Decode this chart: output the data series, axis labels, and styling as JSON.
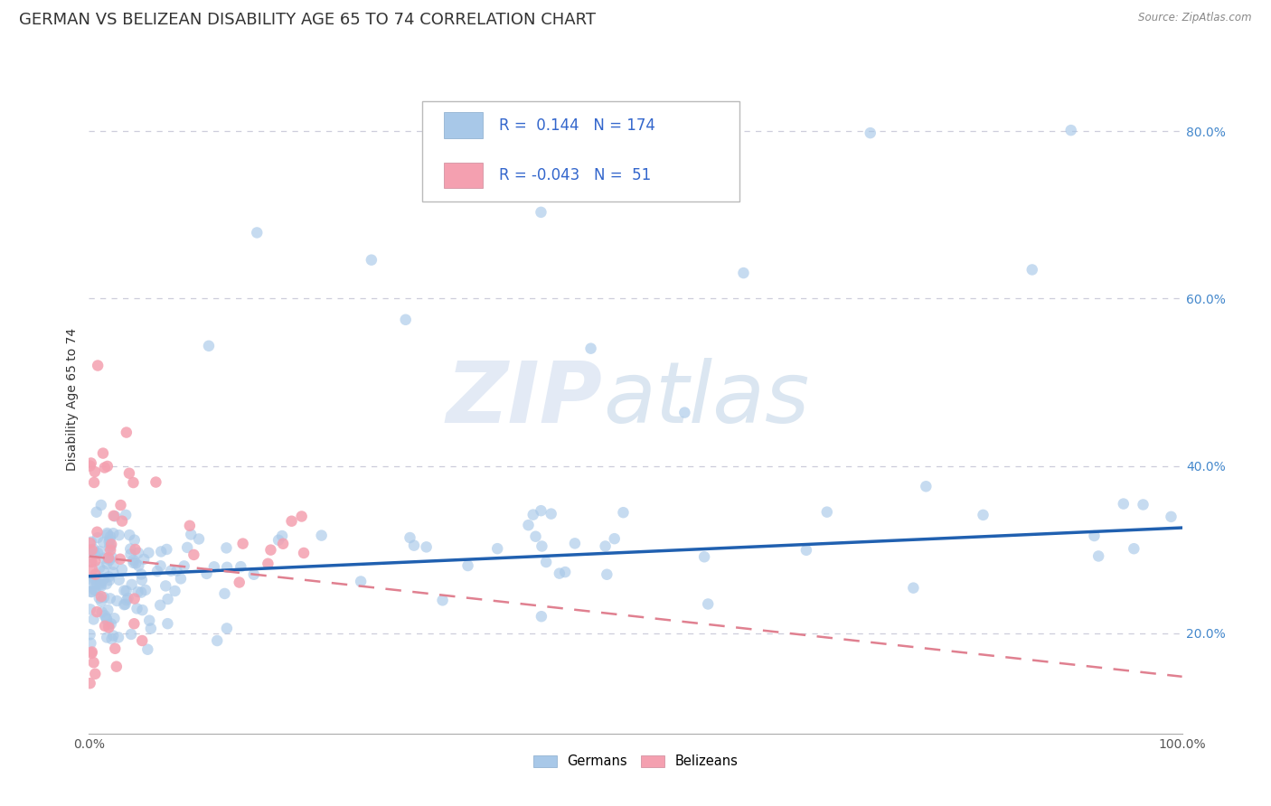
{
  "title": "GERMAN VS BELIZEAN DISABILITY AGE 65 TO 74 CORRELATION CHART",
  "source_text": "Source: ZipAtlas.com",
  "ylabel": "Disability Age 65 to 74",
  "xlim": [
    0.0,
    1.0
  ],
  "ylim": [
    0.08,
    0.88
  ],
  "ytick_positions": [
    0.2,
    0.4,
    0.6,
    0.8
  ],
  "ytick_labels": [
    "20.0%",
    "40.0%",
    "60.0%",
    "80.0%"
  ],
  "german_color": "#a8c8e8",
  "belizean_color": "#f4a0b0",
  "german_line_color": "#2060b0",
  "belizean_line_color": "#e08090",
  "legend_german_r": "0.144",
  "legend_german_n": "174",
  "legend_belizean_r": "-0.043",
  "legend_belizean_n": "51",
  "watermark_zip": "ZIP",
  "watermark_atlas": "atlas",
  "background_color": "#ffffff",
  "grid_color": "#c8c8d8",
  "title_fontsize": 13,
  "axis_label_fontsize": 10,
  "tick_fontsize": 10,
  "marker_size": 9,
  "marker_alpha": 0.65,
  "legend_r_color": "#3366cc",
  "legend_n_color": "#3366cc",
  "ytick_color": "#4488cc"
}
